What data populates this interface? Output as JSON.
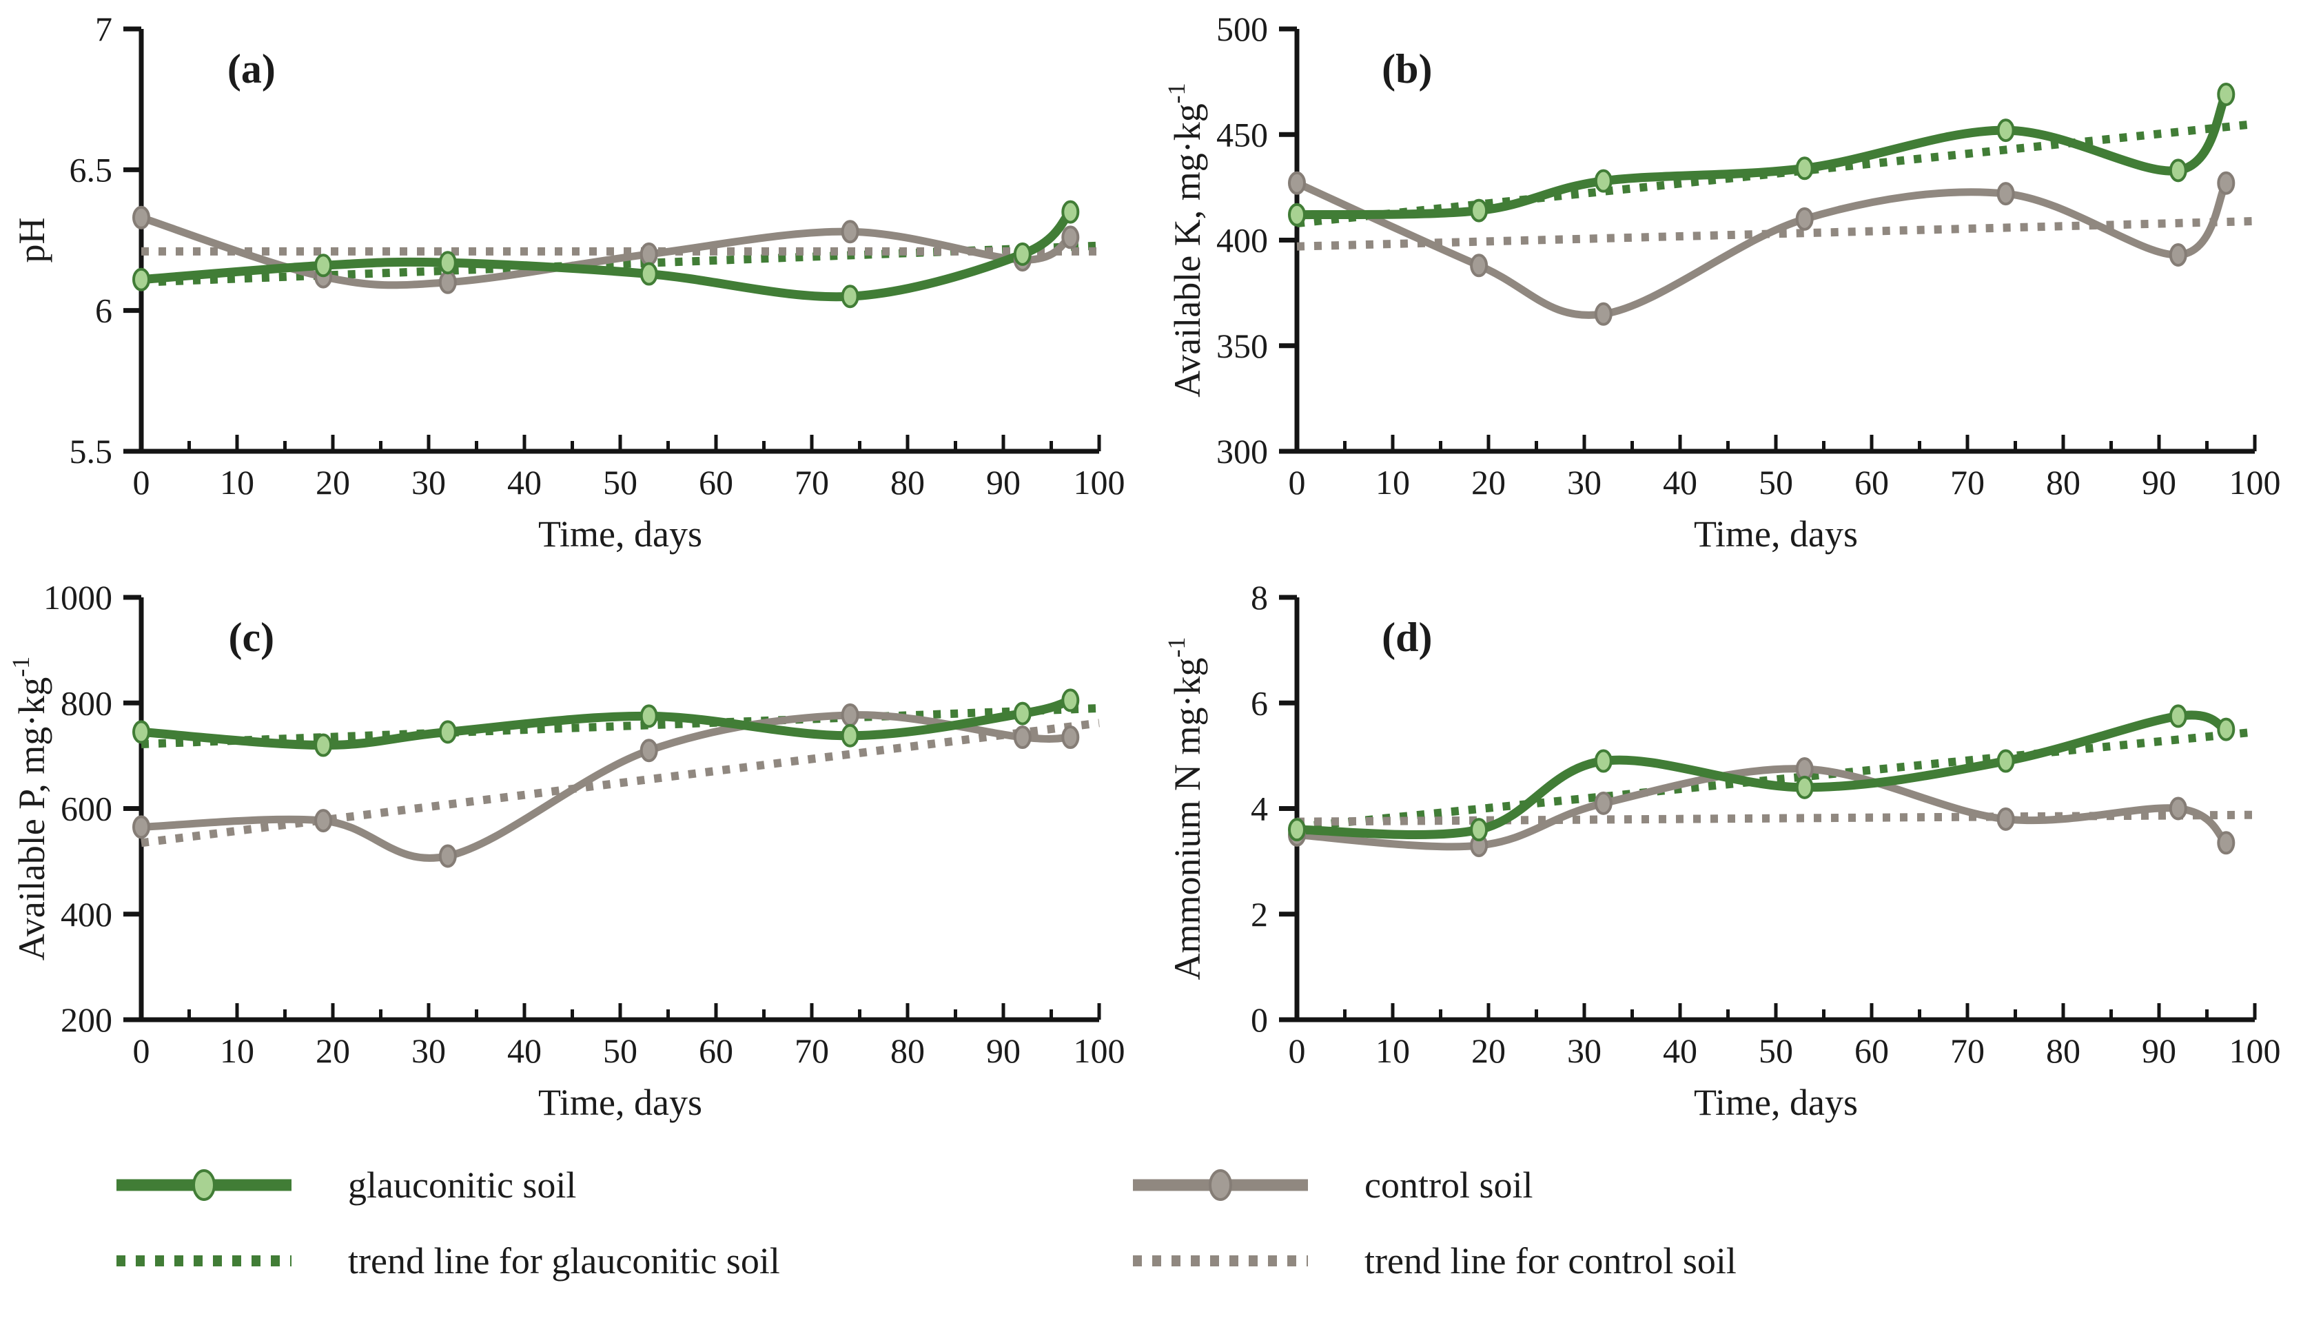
{
  "figure": {
    "background": "#ffffff"
  },
  "style": {
    "axis_color": "#141414",
    "text_color": "#1b1b1b",
    "glauconitic_color": "#417d36",
    "glauconitic_marker_fill": "#a8d292",
    "control_color": "#908880",
    "control_marker_fill": "#a39c95",
    "control_marker_stroke": "#857d76"
  },
  "legend": {
    "position": "bottom",
    "items": [
      {
        "label": "glauconitic soil",
        "series": "glauconitic",
        "type": "solid"
      },
      {
        "label": "trend line for glauconitic soil",
        "series": "glauconitic",
        "type": "dotted"
      },
      {
        "label": "control soil",
        "series": "control",
        "type": "solid"
      },
      {
        "label": "trend line for control soil",
        "series": "control",
        "type": "dotted"
      }
    ]
  },
  "chart_data": [
    {
      "type": "line",
      "panel": "(a)",
      "xlabel": "Time, days",
      "ylabel": "pH",
      "ylabel_sup": "",
      "xlim": [
        0,
        100
      ],
      "xticks": [
        0,
        10,
        20,
        30,
        40,
        50,
        60,
        70,
        80,
        90,
        100
      ],
      "xminor_step": 5,
      "ylim": [
        5.5,
        7
      ],
      "yticks": [
        5.5,
        6,
        6.5,
        7
      ],
      "ytick_labels": [
        "5.5",
        "6",
        "6.5",
        "7"
      ],
      "x": [
        0,
        19,
        32,
        53,
        74,
        92,
        97
      ],
      "series": [
        {
          "name": "glauconitic soil",
          "values": [
            6.11,
            6.16,
            6.17,
            6.13,
            6.05,
            6.2,
            6.35
          ]
        },
        {
          "name": "control soil",
          "values": [
            6.33,
            6.12,
            6.1,
            6.2,
            6.28,
            6.18,
            6.26
          ]
        }
      ],
      "trends": [
        {
          "name": "trend line for glauconitic soil",
          "series": "glauconitic",
          "start": 6.1,
          "end": 6.23
        },
        {
          "name": "trend line for control soil",
          "series": "control",
          "start": 6.21,
          "end": 6.21
        }
      ]
    },
    {
      "type": "line",
      "panel": "(b)",
      "xlabel": "Time, days",
      "ylabel": "Available K,  mg·kg",
      "ylabel_sup": "-1",
      "xlim": [
        0,
        100
      ],
      "xticks": [
        0,
        10,
        20,
        30,
        40,
        50,
        60,
        70,
        80,
        90,
        100
      ],
      "xminor_step": 5,
      "ylim": [
        300,
        500
      ],
      "yticks": [
        300,
        350,
        400,
        450,
        500
      ],
      "ytick_labels": [
        "300",
        "350",
        "400",
        "450",
        "500"
      ],
      "x": [
        0,
        19,
        32,
        53,
        74,
        92,
        97
      ],
      "series": [
        {
          "name": "glauconitic soil",
          "values": [
            412,
            414,
            428,
            434,
            452,
            433,
            469
          ]
        },
        {
          "name": "control soil",
          "values": [
            427,
            388,
            365,
            410,
            422,
            393,
            427
          ]
        }
      ],
      "trends": [
        {
          "name": "trend line for glauconitic soil",
          "series": "glauconitic",
          "start": 408,
          "end": 455
        },
        {
          "name": "trend line for control soil",
          "series": "control",
          "start": 397,
          "end": 409
        }
      ]
    },
    {
      "type": "line",
      "panel": "(c)",
      "xlabel": "Time, days",
      "ylabel": "Available P,  mg·kg",
      "ylabel_sup": "-1",
      "xlim": [
        0,
        100
      ],
      "xticks": [
        0,
        10,
        20,
        30,
        40,
        50,
        60,
        70,
        80,
        90,
        100
      ],
      "xminor_step": 5,
      "ylim": [
        200,
        1000
      ],
      "yticks": [
        200,
        400,
        600,
        800,
        1000
      ],
      "ytick_labels": [
        "200",
        "400",
        "600",
        "800",
        "1000"
      ],
      "x": [
        0,
        19,
        32,
        53,
        74,
        92,
        97
      ],
      "series": [
        {
          "name": "glauconitic soil",
          "values": [
            745,
            720,
            745,
            775,
            738,
            780,
            805
          ]
        },
        {
          "name": "control soil",
          "values": [
            565,
            577,
            510,
            710,
            777,
            735,
            735
          ]
        }
      ],
      "trends": [
        {
          "name": "trend line for glauconitic soil",
          "series": "glauconitic",
          "start": 722,
          "end": 790
        },
        {
          "name": "trend line for control soil",
          "series": "control",
          "start": 535,
          "end": 762
        }
      ]
    },
    {
      "type": "line",
      "panel": "(d)",
      "xlabel": "Time, days",
      "ylabel": "Ammonium N  mg·kg",
      "ylabel_sup": "-1",
      "xlim": [
        0,
        100
      ],
      "xticks": [
        0,
        10,
        20,
        30,
        40,
        50,
        60,
        70,
        80,
        90,
        100
      ],
      "xminor_step": 5,
      "ylim": [
        0,
        8
      ],
      "yticks": [
        0,
        2,
        4,
        6,
        8
      ],
      "ytick_labels": [
        "0",
        "2",
        "4",
        "6",
        "8"
      ],
      "x": [
        0,
        19,
        32,
        53,
        74,
        92,
        97
      ],
      "series": [
        {
          "name": "glauconitic soil",
          "values": [
            3.6,
            3.6,
            4.9,
            4.4,
            4.9,
            5.75,
            5.5
          ]
        },
        {
          "name": "control soil",
          "values": [
            3.5,
            3.3,
            4.1,
            4.75,
            3.8,
            4.0,
            3.35
          ]
        }
      ],
      "trends": [
        {
          "name": "trend line for glauconitic soil",
          "series": "glauconitic",
          "start": 3.65,
          "end": 5.45
        },
        {
          "name": "trend line for control soil",
          "series": "control",
          "start": 3.75,
          "end": 3.88
        }
      ]
    }
  ]
}
